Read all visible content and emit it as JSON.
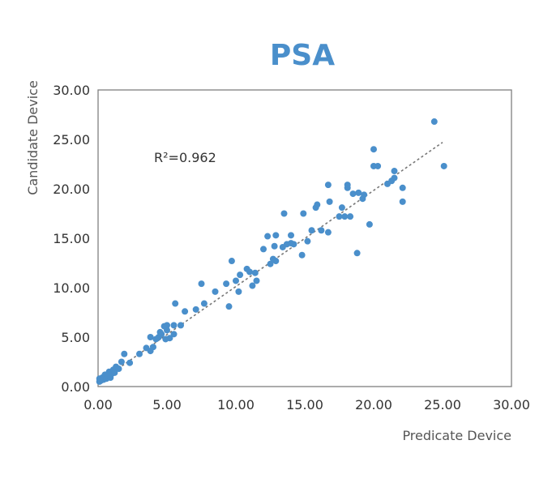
{
  "chart_data": {
    "type": "scatter",
    "title": "PSA",
    "xlabel": "Predicate Device",
    "ylabel": "Candidate Device",
    "xlim": [
      0,
      30
    ],
    "ylim": [
      0,
      30
    ],
    "x_ticks": [
      "0.00",
      "5.00",
      "10.00",
      "15.00",
      "20.00",
      "25.00",
      "30.00"
    ],
    "y_ticks": [
      "0.00",
      "5.00",
      "10.00",
      "15.00",
      "20.00",
      "25.00",
      "30.00"
    ],
    "grid": false,
    "annotation": "R²=0.962",
    "point_color": "#4a8fcb",
    "trendline": {
      "style": "dotted",
      "color": "#777777",
      "x_start": 0,
      "x_end": 25.0,
      "y_start": 0.4,
      "y_end": 24.7
    },
    "series": [
      {
        "points": [
          [
            0.1,
            0.5
          ],
          [
            0.1,
            0.8
          ],
          [
            0.2,
            0.6
          ],
          [
            0.3,
            0.9
          ],
          [
            0.4,
            0.7
          ],
          [
            0.5,
            1.0
          ],
          [
            0.5,
            1.2
          ],
          [
            0.6,
            0.8
          ],
          [
            0.7,
            1.1
          ],
          [
            0.8,
            1.5
          ],
          [
            0.9,
            0.9
          ],
          [
            1.0,
            1.3
          ],
          [
            1.1,
            1.7
          ],
          [
            1.2,
            1.4
          ],
          [
            1.3,
            2.0
          ],
          [
            1.5,
            1.8
          ],
          [
            1.7,
            2.5
          ],
          [
            1.9,
            3.3
          ],
          [
            2.3,
            2.4
          ],
          [
            3.0,
            3.3
          ],
          [
            3.5,
            3.9
          ],
          [
            3.8,
            3.6
          ],
          [
            3.8,
            5.0
          ],
          [
            4.0,
            4.0
          ],
          [
            4.2,
            4.8
          ],
          [
            4.4,
            5.0
          ],
          [
            4.5,
            5.5
          ],
          [
            4.6,
            5.3
          ],
          [
            4.8,
            6.1
          ],
          [
            4.9,
            4.8
          ],
          [
            5.0,
            5.7
          ],
          [
            5.0,
            6.2
          ],
          [
            5.2,
            4.9
          ],
          [
            5.5,
            5.3
          ],
          [
            5.5,
            6.2
          ],
          [
            5.6,
            8.4
          ],
          [
            6.0,
            6.2
          ],
          [
            6.3,
            7.6
          ],
          [
            7.1,
            7.8
          ],
          [
            7.5,
            10.4
          ],
          [
            7.7,
            8.4
          ],
          [
            8.5,
            9.6
          ],
          [
            9.3,
            10.4
          ],
          [
            9.5,
            8.1
          ],
          [
            9.7,
            12.7
          ],
          [
            10.0,
            10.7
          ],
          [
            10.2,
            9.6
          ],
          [
            10.3,
            11.3
          ],
          [
            10.8,
            11.9
          ],
          [
            11.0,
            11.6
          ],
          [
            11.2,
            10.2
          ],
          [
            11.4,
            11.5
          ],
          [
            11.5,
            10.7
          ],
          [
            12.0,
            13.9
          ],
          [
            12.3,
            15.2
          ],
          [
            12.5,
            12.4
          ],
          [
            12.7,
            12.9
          ],
          [
            12.8,
            14.2
          ],
          [
            12.9,
            12.7
          ],
          [
            12.9,
            15.3
          ],
          [
            13.4,
            14.1
          ],
          [
            13.5,
            17.5
          ],
          [
            13.7,
            14.4
          ],
          [
            14.0,
            14.5
          ],
          [
            14.0,
            15.3
          ],
          [
            14.2,
            14.4
          ],
          [
            14.8,
            13.3
          ],
          [
            14.9,
            17.5
          ],
          [
            15.2,
            14.7
          ],
          [
            15.5,
            15.8
          ],
          [
            15.8,
            18.1
          ],
          [
            15.9,
            18.4
          ],
          [
            16.2,
            15.8
          ],
          [
            16.7,
            15.6
          ],
          [
            16.7,
            20.4
          ],
          [
            16.8,
            18.7
          ],
          [
            17.5,
            17.2
          ],
          [
            17.7,
            18.1
          ],
          [
            17.9,
            17.2
          ],
          [
            18.1,
            20.1
          ],
          [
            18.1,
            20.4
          ],
          [
            18.3,
            17.2
          ],
          [
            18.5,
            19.5
          ],
          [
            18.8,
            13.5
          ],
          [
            18.9,
            19.6
          ],
          [
            19.2,
            19.0
          ],
          [
            19.3,
            19.4
          ],
          [
            19.7,
            16.4
          ],
          [
            20.0,
            24.0
          ],
          [
            20.0,
            22.3
          ],
          [
            20.3,
            22.3
          ],
          [
            21.0,
            20.5
          ],
          [
            21.3,
            20.8
          ],
          [
            21.5,
            21.1
          ],
          [
            21.5,
            21.8
          ],
          [
            22.1,
            20.1
          ],
          [
            22.1,
            18.7
          ],
          [
            24.4,
            26.8
          ],
          [
            25.1,
            22.3
          ]
        ]
      }
    ]
  }
}
